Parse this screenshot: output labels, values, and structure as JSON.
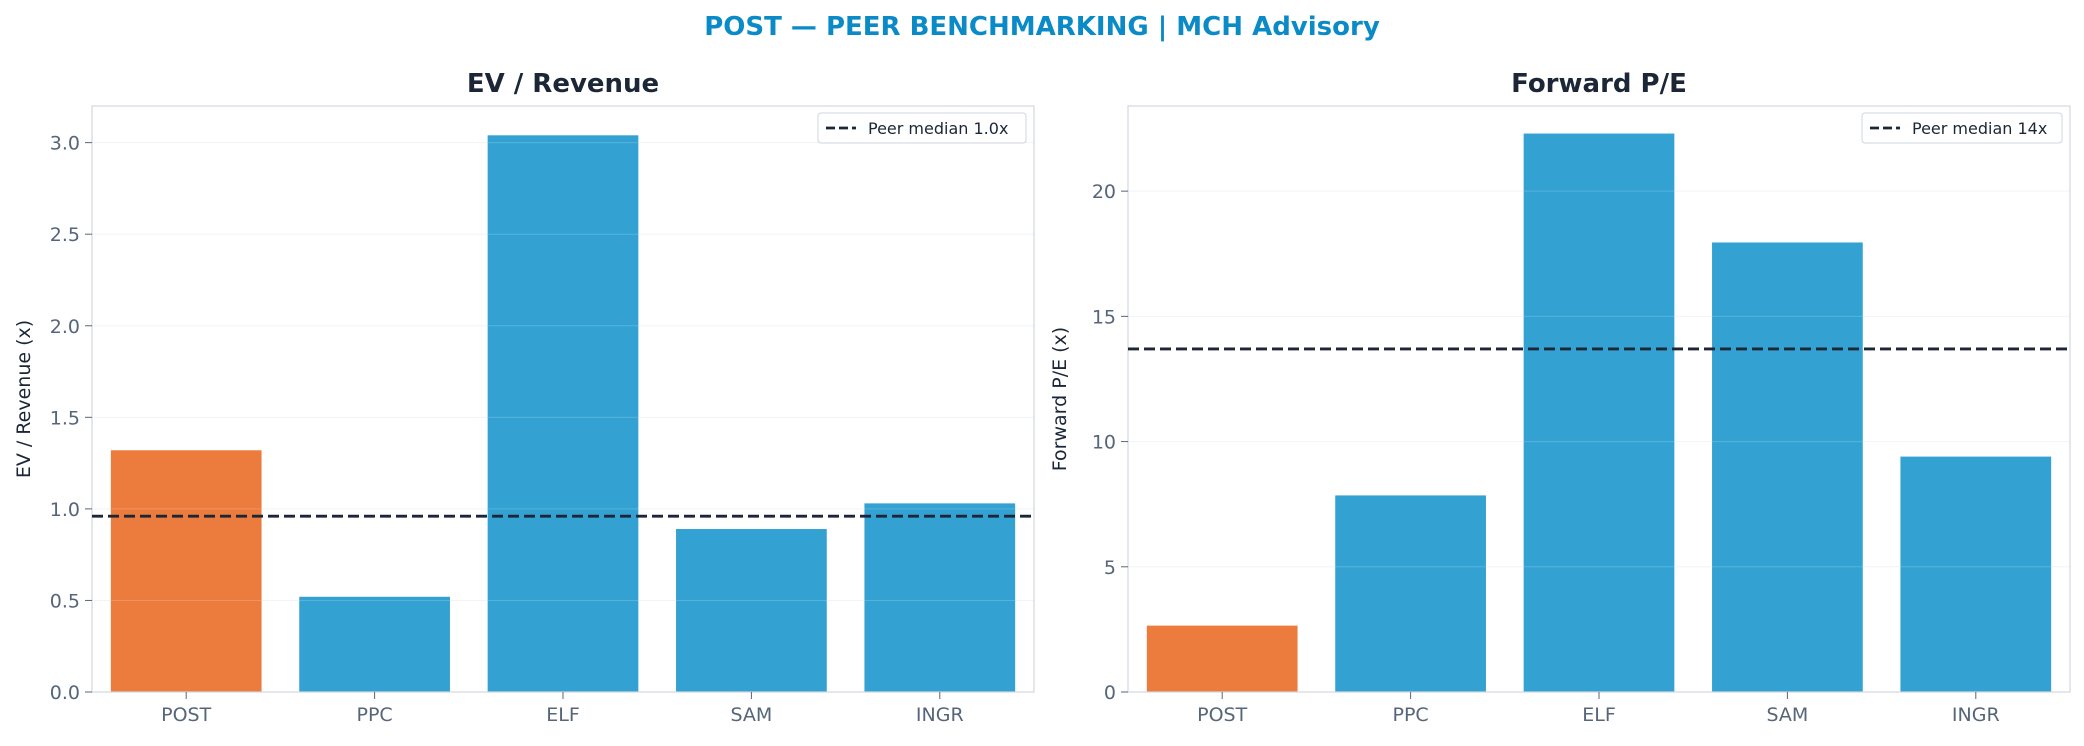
{
  "suptitle": "POST — PEER BENCHMARKING | MCH Advisory",
  "colors": {
    "highlight": "#ec7b3e",
    "peer": "#33a2d3",
    "median_line": "#1b2636",
    "title": "#0a8ac6",
    "axis_text": "#56657a",
    "grid": "#eef1f5",
    "spine": "#d2d7de"
  },
  "chart_data": [
    {
      "type": "bar",
      "title": "EV / Revenue",
      "ylabel": "EV / Revenue (x)",
      "xlabel": "",
      "categories": [
        "POST",
        "PPC",
        "ELF",
        "SAM",
        "INGR"
      ],
      "values": [
        1.32,
        0.52,
        3.04,
        0.89,
        1.03
      ],
      "highlight_index": 0,
      "ylim": [
        0,
        3.2
      ],
      "yticks": [
        0,
        0.5,
        1.0,
        1.5,
        2.0,
        2.5,
        3.0
      ],
      "ytick_labels": [
        "0.0",
        "0.5",
        "1.0",
        "1.5",
        "2.0",
        "2.5",
        "3.0"
      ],
      "reference_line": {
        "value": 0.96,
        "style": "dashed",
        "label": "Peer median 1.0x"
      },
      "legend_position": "top-right",
      "grid": true
    },
    {
      "type": "bar",
      "title": "Forward P/E",
      "ylabel": "Forward P/E (x)",
      "xlabel": "",
      "categories": [
        "POST",
        "PPC",
        "ELF",
        "SAM",
        "INGR"
      ],
      "values": [
        2.65,
        7.85,
        22.3,
        17.95,
        9.4
      ],
      "highlight_index": 0,
      "ylim": [
        0,
        23.4
      ],
      "yticks": [
        0,
        5,
        10,
        15,
        20
      ],
      "ytick_labels": [
        "0",
        "5",
        "10",
        "15",
        "20"
      ],
      "reference_line": {
        "value": 13.7,
        "style": "dashed",
        "label": "Peer median 14x"
      },
      "legend_position": "top-right",
      "grid": true
    }
  ]
}
